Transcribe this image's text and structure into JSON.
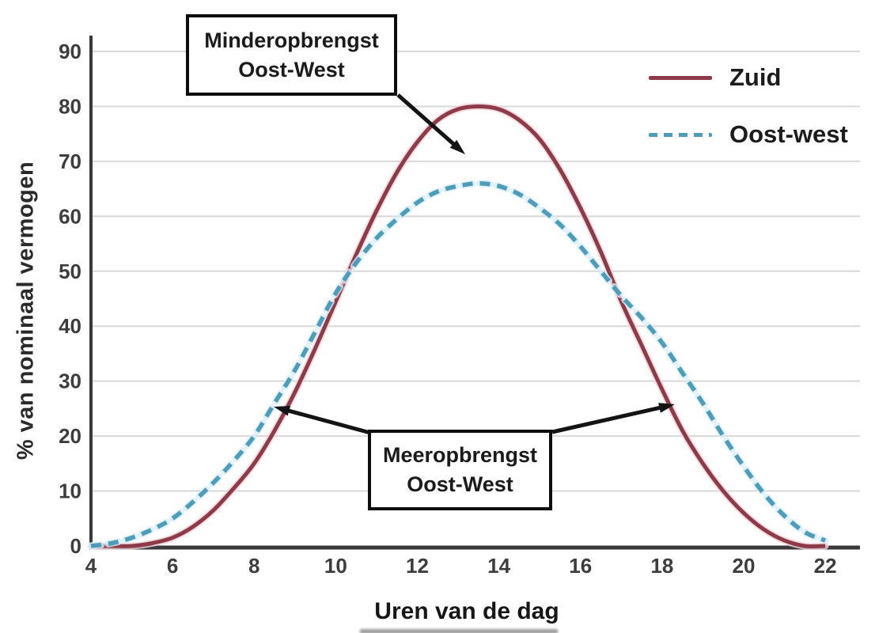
{
  "chart_data": {
    "type": "line",
    "xlabel": "Uren van de dag",
    "ylabel": "% van nominaal vermogen",
    "xlim": [
      4,
      22
    ],
    "ylim": [
      0,
      90
    ],
    "x_ticks": [
      4,
      6,
      8,
      10,
      12,
      14,
      16,
      18,
      20,
      22
    ],
    "y_ticks": [
      0,
      10,
      20,
      30,
      40,
      50,
      60,
      70,
      80,
      90
    ],
    "grid": "horizontal",
    "legend_position": "top-right",
    "x": [
      4,
      4.5,
      5,
      5.5,
      6,
      6.5,
      7,
      7.5,
      8,
      8.5,
      9,
      9.5,
      10,
      10.5,
      11,
      11.5,
      12,
      12.5,
      13,
      13.5,
      14,
      14.5,
      15,
      15.5,
      16,
      16.5,
      17,
      17.5,
      18,
      18.5,
      19,
      19.5,
      20,
      20.5,
      21,
      21.5,
      22
    ],
    "series": [
      {
        "name": "Zuid",
        "style": "solid",
        "color": "#8e3b49",
        "halo": "#f0d5db",
        "peak": {
          "x": 13.5,
          "y": 80
        },
        "values": [
          0,
          0,
          0,
          0.5,
          1.5,
          3.5,
          6.5,
          10.5,
          15,
          21,
          28,
          36,
          44.5,
          53,
          61,
          68,
          73.5,
          77.5,
          79.5,
          80,
          79.5,
          77.5,
          74,
          68.5,
          61.5,
          53.5,
          44.5,
          36.5,
          28.5,
          21,
          15,
          10,
          6,
          3,
          1,
          0,
          0
        ]
      },
      {
        "name": "Oost-west",
        "style": "dashed",
        "color": "#4d9db8",
        "halo": "#d9eef7",
        "peak": {
          "x": 13.5,
          "y": 66
        },
        "values": [
          0,
          0.5,
          1.5,
          3,
          5,
          8,
          11.5,
          15.5,
          20,
          26,
          32,
          39,
          46,
          51.5,
          56,
          59.5,
          62.5,
          64.5,
          65.5,
          66,
          65.5,
          64,
          61.5,
          58.5,
          54.5,
          50,
          45.5,
          41.5,
          37,
          31.5,
          26,
          20,
          14.5,
          9.5,
          5.5,
          2.5,
          1
        ]
      }
    ],
    "annotations": [
      {
        "id": "minderopbrengst",
        "lines": [
          "Minderopbrengst",
          "Oost-West"
        ]
      },
      {
        "id": "meeropbrengst",
        "lines": [
          "Meeropbrengst",
          "Oost-West"
        ]
      }
    ],
    "colors": {
      "axis": "#3a3a3a",
      "grid": "#d8d8d8",
      "tick_text": "#3d3d3d",
      "arrow": "#141414"
    }
  }
}
